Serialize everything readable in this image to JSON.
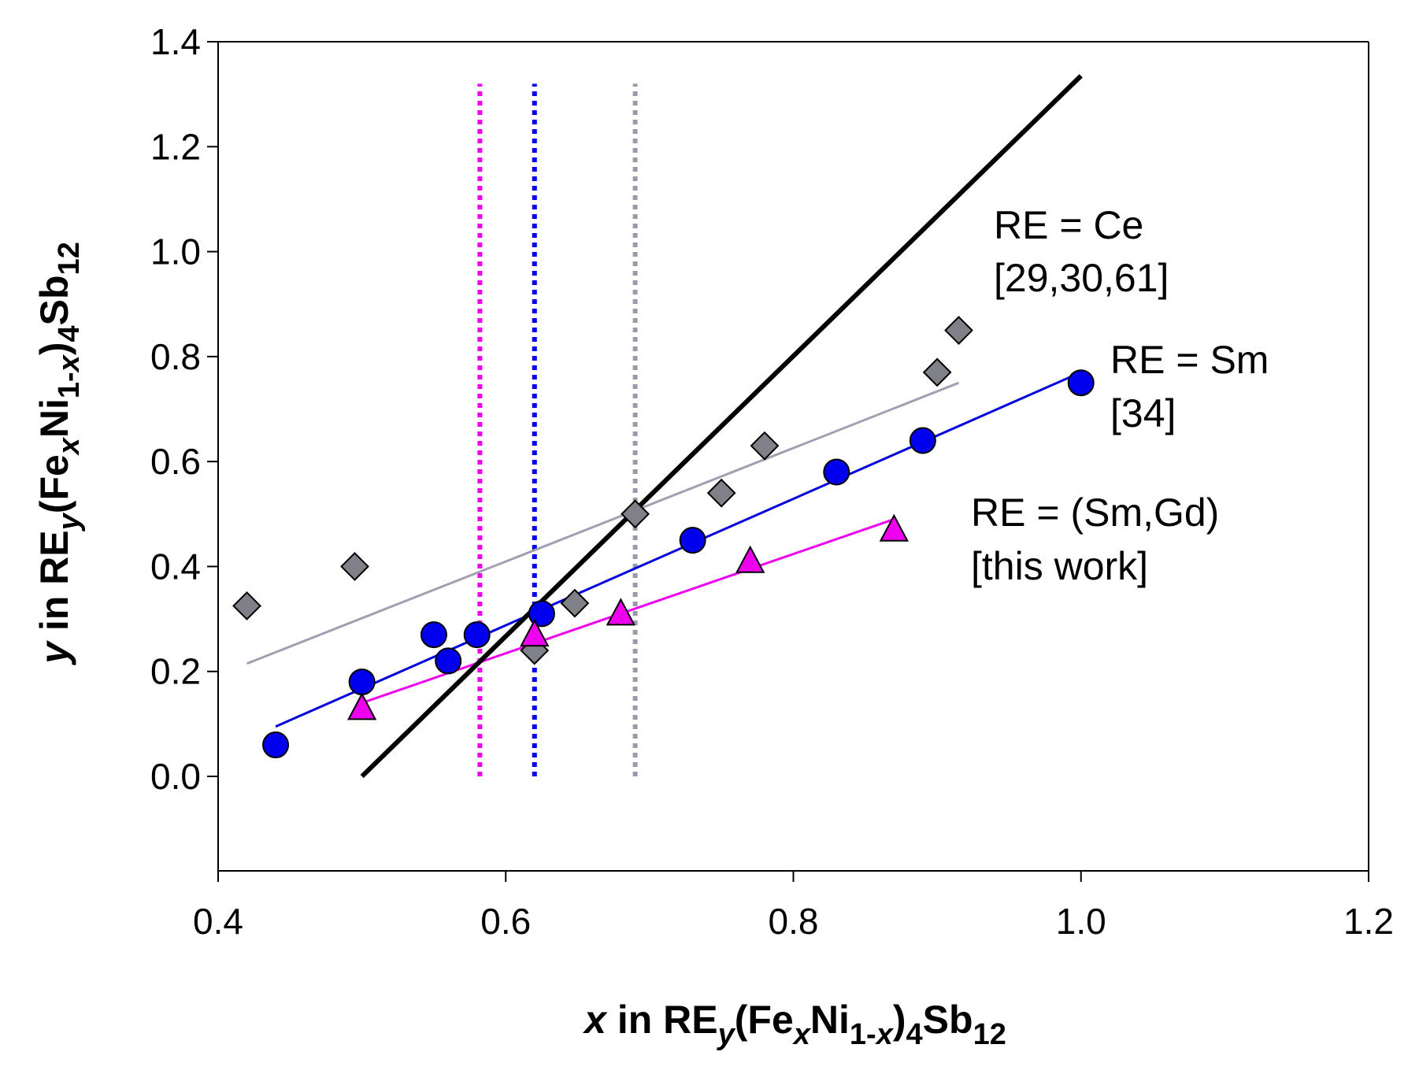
{
  "chart_data": {
    "type": "scatter",
    "title": "",
    "xlim": [
      0.4,
      1.2
    ],
    "ylim": [
      -0.18,
      1.4
    ],
    "xticks": [
      "0.4",
      "0.6",
      "0.8",
      "1.0",
      "1.2"
    ],
    "yticks": [
      "1.4",
      "1.2",
      "1.0",
      "0.8",
      "0.6",
      "0.4",
      "0.2",
      "0.0"
    ],
    "xlabel": {
      "pre": "x",
      "mid": " in RE",
      "sub1": "y",
      "p2": "(Fe",
      "sub2": "x",
      "p3": "Ni",
      "sub3": "1-",
      "sub3i": "x",
      "p4": ")",
      "sub4": "4",
      "p5": "Sb",
      "sub5": "12"
    },
    "ylabel": {
      "pre": "y",
      "mid": " in RE",
      "sub1": "y",
      "p2": "(Fe",
      "sub2": "x",
      "p3": "Ni",
      "sub3": "1-",
      "sub3i": "x",
      "p4": ")",
      "sub4": "4",
      "p5": "Sb",
      "sub5": "12"
    },
    "series": [
      {
        "name": "RE = Ce",
        "ref": "[29,30,61]",
        "marker": "diamond",
        "color": "#808088",
        "line_color": "#a0a0b0",
        "fit": [
          [
            0.42,
            0.215
          ],
          [
            0.915,
            0.75
          ]
        ],
        "points": [
          [
            0.42,
            0.325
          ],
          [
            0.495,
            0.4
          ],
          [
            0.62,
            0.24
          ],
          [
            0.648,
            0.33
          ],
          [
            0.69,
            0.5
          ],
          [
            0.75,
            0.54
          ],
          [
            0.78,
            0.63
          ],
          [
            0.9,
            0.77
          ],
          [
            0.915,
            0.85
          ]
        ]
      },
      {
        "name": "RE = Sm",
        "ref": "[34]",
        "marker": "circle",
        "color": "#0000ee",
        "line_color": "#0000dd",
        "fit": [
          [
            0.44,
            0.095
          ],
          [
            1.0,
            0.77
          ]
        ],
        "points": [
          [
            0.44,
            0.06
          ],
          [
            0.5,
            0.18
          ],
          [
            0.55,
            0.27
          ],
          [
            0.56,
            0.22
          ],
          [
            0.58,
            0.27
          ],
          [
            0.625,
            0.31
          ],
          [
            0.73,
            0.45
          ],
          [
            0.83,
            0.58
          ],
          [
            0.89,
            0.64
          ],
          [
            1.0,
            0.75
          ]
        ]
      },
      {
        "name": "RE = (Sm,Gd)",
        "ref": "[this work]",
        "marker": "triangle",
        "color": "#ee00ee",
        "line_color": "#ee00ee",
        "fit": [
          [
            0.5,
            0.14
          ],
          [
            0.87,
            0.49
          ]
        ],
        "points": [
          [
            0.5,
            0.13
          ],
          [
            0.62,
            0.27
          ],
          [
            0.68,
            0.31
          ],
          [
            0.77,
            0.41
          ],
          [
            0.87,
            0.47
          ]
        ]
      }
    ],
    "reference_line": {
      "color": "#000000",
      "points": [
        [
          0.5,
          0.0
        ],
        [
          1.0,
          1.335
        ]
      ]
    },
    "vertical_lines": [
      {
        "x": 0.582,
        "color": "#ee00ee",
        "y_range": [
          0.0,
          1.32
        ]
      },
      {
        "x": 0.62,
        "color": "#0000ee",
        "y_range": [
          0.0,
          1.32
        ]
      },
      {
        "x": 0.69,
        "color": "#9a9aaa",
        "y_range": [
          0.0,
          1.32
        ]
      }
    ]
  }
}
